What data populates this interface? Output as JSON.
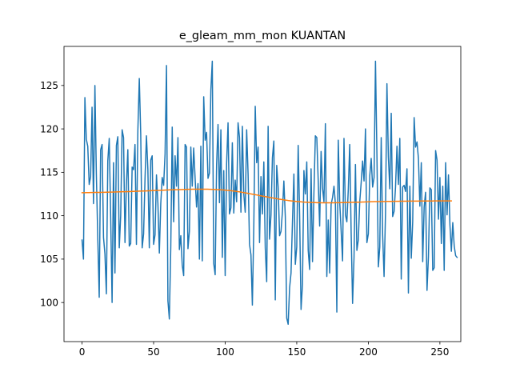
{
  "chart_data": {
    "type": "line",
    "title": "e_gleam_mm_mon KUANTAN",
    "xlabel": "",
    "ylabel": "",
    "xlim": [
      -12.6,
      264.6
    ],
    "ylim": [
      95.5,
      129.5
    ],
    "xticks": [
      0,
      50,
      100,
      150,
      200,
      250
    ],
    "yticks": [
      100,
      105,
      110,
      115,
      120,
      125
    ],
    "grid": false,
    "legend": "none",
    "series": [
      {
        "color": "#1f77b4",
        "x_start": 0,
        "x_step": 1,
        "values": [
          107.2,
          105.0,
          123.6,
          118.8,
          118.0,
          113.6,
          114.5,
          122.5,
          111.4,
          125.0,
          114.8,
          107.4,
          100.6,
          117.6,
          118.2,
          107.5,
          105.6,
          101.0,
          116.3,
          118.9,
          110.0,
          100.0,
          116.1,
          103.4,
          118.1,
          119.1,
          106.3,
          110.0,
          119.9,
          119.0,
          106.9,
          113.6,
          117.6,
          106.5,
          106.8,
          115.6,
          115.3,
          118.2,
          106.7,
          119.8,
          125.8,
          119.4,
          106.3,
          107.9,
          114.3,
          119.2,
          115.3,
          106.3,
          116.4,
          116.9,
          106.7,
          107.8,
          114.7,
          111.4,
          105.7,
          111.4,
          114.4,
          113.5,
          117.1,
          127.3,
          100.2,
          98.1,
          106.4,
          120.2,
          109.3,
          116.9,
          113.4,
          119.0,
          106.1,
          107.7,
          104.3,
          103.1,
          118.2,
          117.9,
          106.2,
          108.2,
          117.9,
          113.4,
          117.8,
          114.3,
          111.0,
          113.7,
          105.0,
          118.0,
          104.8,
          123.7,
          118.7,
          119.6,
          114.3,
          114.9,
          124.5,
          127.8,
          104.5,
          103.2,
          115.8,
          120.5,
          111.5,
          119.9,
          105.2,
          115.2,
          103.1,
          116.0,
          120.7,
          110.2,
          110.9,
          118.4,
          110.3,
          114.1,
          111.6,
          120.7,
          119.0,
          110.4,
          120.3,
          112.5,
          110.4,
          119.9,
          114.8,
          106.7,
          105.5,
          99.7,
          108.8,
          122.6,
          116.1,
          117.9,
          106.9,
          114.5,
          110.2,
          116.2,
          106.3,
          102.4,
          120.3,
          107.3,
          110.1,
          116.7,
          118.6,
          100.3,
          115.8,
          113.3,
          107.7,
          108.2,
          110.5,
          114.0,
          109.9,
          98.2,
          97.5,
          101.7,
          103.4,
          109.3,
          114.8,
          104.4,
          106.4,
          118.1,
          110.1,
          99.2,
          102.1,
          115.2,
          112.5,
          116.2,
          106.0,
          103.8,
          115.4,
          104.7,
          112.7,
          119.2,
          119.0,
          114.0,
          108.8,
          117.4,
          113.2,
          111.6,
          120.6,
          103.0,
          109.5,
          103.4,
          111.3,
          112.1,
          113.4,
          111.4,
          98.9,
          118.7,
          111.6,
          108.3,
          104.8,
          118.9,
          110.1,
          109.3,
          113.0,
          118.2,
          108.0,
          99.9,
          105.2,
          115.9,
          106.0,
          107.2,
          111.6,
          113.8,
          116.3,
          114.0,
          120.0,
          106.9,
          107.9,
          114.6,
          116.6,
          113.3,
          114.4,
          127.8,
          117.1,
          104.1,
          106.4,
          119.0,
          107.8,
          103.0,
          110.3,
          125.2,
          116.8,
          113.1,
          121.8,
          109.9,
          110.5,
          113.3,
          118.0,
          113.6,
          118.9,
          102.7,
          113.3,
          113.5,
          112.8,
          115.4,
          101.1,
          113.4,
          105.1,
          109.3,
          121.3,
          117.9,
          118.5,
          116.6,
          111.1,
          116.1,
          104.7,
          111.0,
          112.7,
          101.4,
          105.3,
          113.2,
          113.0,
          103.7,
          104.0,
          117.5,
          116.4,
          109.6,
          114.4,
          106.8,
          113.4,
          103.7,
          116.1,
          110.1,
          114.7,
          109.0,
          105.9,
          109.2,
          106.5,
          105.4,
          105.2
        ]
      },
      {
        "color": "#ff7f0e",
        "x_start": 0,
        "x_step": 1,
        "values": [
          112.65,
          112.65,
          112.65,
          112.66,
          112.66,
          112.66,
          112.67,
          112.67,
          112.67,
          112.68,
          112.68,
          112.68,
          112.69,
          112.69,
          112.7,
          112.7,
          112.7,
          112.71,
          112.71,
          112.72,
          112.72,
          112.72,
          112.73,
          112.73,
          112.74,
          112.74,
          112.75,
          112.75,
          112.76,
          112.76,
          112.77,
          112.77,
          112.78,
          112.78,
          112.79,
          112.8,
          112.8,
          112.81,
          112.81,
          112.82,
          112.83,
          112.83,
          112.84,
          112.85,
          112.85,
          112.86,
          112.87,
          112.87,
          112.88,
          112.89,
          112.9,
          112.9,
          112.91,
          112.92,
          112.92,
          112.93,
          112.94,
          112.94,
          112.95,
          112.96,
          112.96,
          112.97,
          112.98,
          112.98,
          112.99,
          112.99,
          113.0,
          113.0,
          113.01,
          113.01,
          113.02,
          113.02,
          113.03,
          113.03,
          113.04,
          113.04,
          113.04,
          113.05,
          113.05,
          113.05,
          113.05,
          113.05,
          113.05,
          113.05,
          113.05,
          113.05,
          113.05,
          113.05,
          113.05,
          113.04,
          113.04,
          113.03,
          113.03,
          113.02,
          113.01,
          113.0,
          112.99,
          112.98,
          112.97,
          112.96,
          112.95,
          112.93,
          112.92,
          112.9,
          112.88,
          112.86,
          112.84,
          112.82,
          112.8,
          112.77,
          112.75,
          112.72,
          112.69,
          112.66,
          112.63,
          112.6,
          112.57,
          112.54,
          112.51,
          112.48,
          112.45,
          112.42,
          112.39,
          112.36,
          112.32,
          112.29,
          112.26,
          112.23,
          112.2,
          112.17,
          112.14,
          112.11,
          112.08,
          112.05,
          112.02,
          111.99,
          111.96,
          111.93,
          111.9,
          111.88,
          111.85,
          111.82,
          111.8,
          111.78,
          111.75,
          111.73,
          111.71,
          111.69,
          111.67,
          111.66,
          111.64,
          111.62,
          111.61,
          111.6,
          111.58,
          111.57,
          111.56,
          111.55,
          111.54,
          111.53,
          111.53,
          111.52,
          111.51,
          111.51,
          111.5,
          111.5,
          111.5,
          111.49,
          111.49,
          111.49,
          111.49,
          111.49,
          111.49,
          111.49,
          111.49,
          111.49,
          111.49,
          111.5,
          111.5,
          111.5,
          111.5,
          111.51,
          111.51,
          111.51,
          111.52,
          111.52,
          111.53,
          111.53,
          111.54,
          111.54,
          111.55,
          111.55,
          111.56,
          111.56,
          111.57,
          111.57,
          111.58,
          111.58,
          111.59,
          111.59,
          111.6,
          111.6,
          111.61,
          111.61,
          111.62,
          111.62,
          111.62,
          111.63,
          111.63,
          111.63,
          111.64,
          111.64,
          111.64,
          111.65,
          111.65,
          111.65,
          111.65,
          111.66,
          111.66,
          111.66,
          111.66,
          111.66,
          111.67,
          111.67,
          111.67,
          111.67,
          111.67,
          111.67,
          111.68,
          111.68,
          111.68,
          111.68,
          111.68,
          111.68,
          111.68,
          111.68,
          111.69,
          111.69,
          111.69,
          111.69,
          111.69,
          111.69,
          111.69,
          111.69,
          111.69,
          111.69,
          111.7,
          111.7,
          111.7,
          111.7,
          111.7,
          111.7,
          111.7,
          111.7,
          111.7,
          111.7,
          111.7,
          111.7,
          111.7
        ]
      }
    ]
  }
}
